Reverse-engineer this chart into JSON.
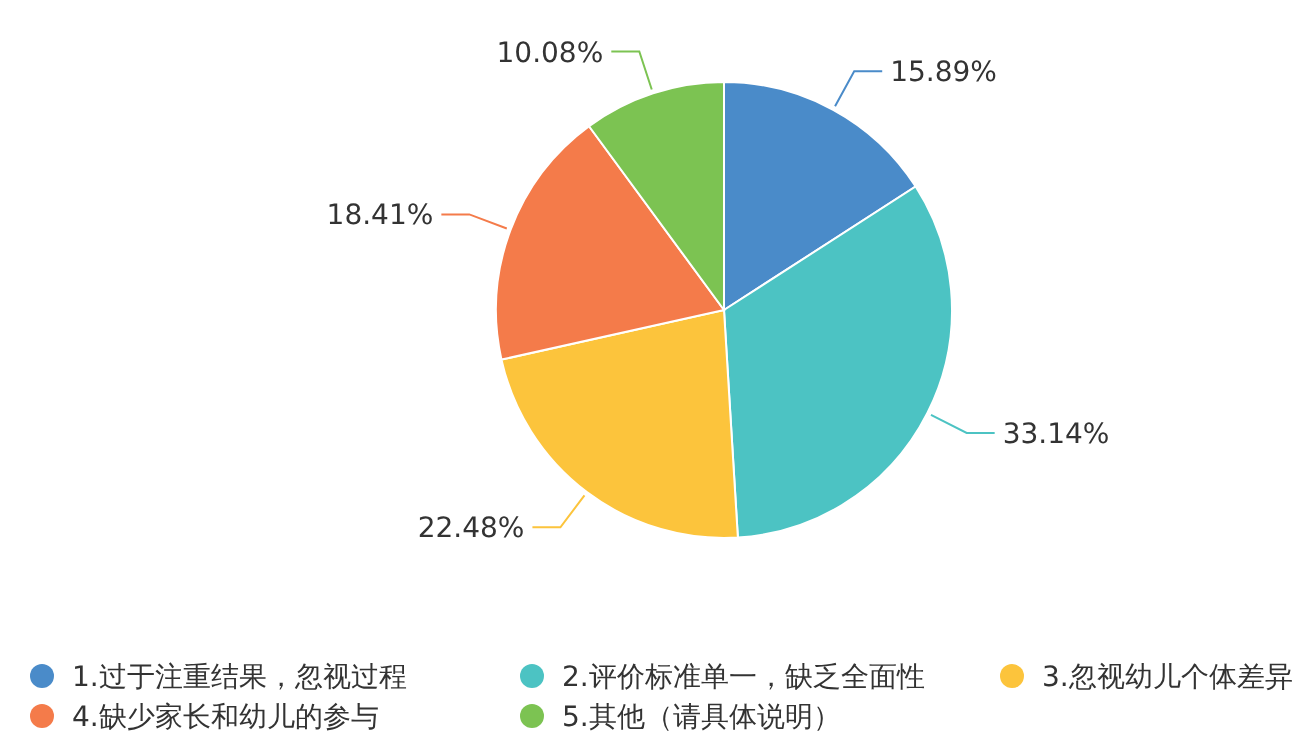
{
  "chart_data": {
    "type": "pie",
    "categories": [
      "1.过于注重结果，忽视过程",
      "2.评价标准单一，缺乏全面性",
      "3.忽视幼儿个体差异",
      "4.缺少家长和幼儿的参与",
      "5.其他（请具体说明）"
    ],
    "values": [
      15.89,
      33.14,
      22.48,
      18.41,
      10.08
    ],
    "colors": [
      "#4a8bc9",
      "#4cc3c3",
      "#fcc43c",
      "#f47b4a",
      "#7cc352"
    ],
    "value_labels": [
      "15.89%",
      "33.14%",
      "22.48%",
      "18.41%",
      "10.08%"
    ],
    "legend": "bottom"
  }
}
